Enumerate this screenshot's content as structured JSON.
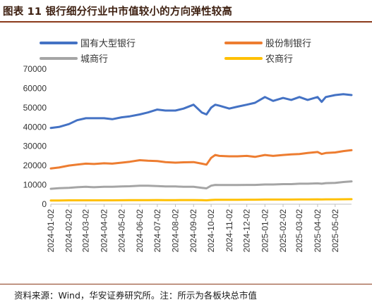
{
  "title": "图表 11 银行细分行业中市值较小的方向弹性较高",
  "source": "资料来源：Wind，华安证券研究所。注：所示为各板块总市值",
  "colors": {
    "guoyou": "#4472C4",
    "gufen": "#ED7D31",
    "chengshang": "#A5A5A5",
    "nongshang": "#FFC000",
    "accent": "#8b3a1a"
  },
  "chart_data": {
    "type": "line",
    "ylim": [
      0,
      70000
    ],
    "yticks": [
      0,
      10000,
      20000,
      30000,
      40000,
      50000,
      60000,
      70000
    ],
    "ytick_labels": [
      "0",
      "10000",
      "20000",
      "30000",
      "40000",
      "50000",
      "60000",
      "70000"
    ],
    "x_tick_labels": [
      "2024-01-02",
      "2024-02-02",
      "2024-03-02",
      "2024-04-02",
      "2024-05-02",
      "2024-06-02",
      "2024-07-02",
      "2024-08-02",
      "2024-09-02",
      "2024-10-02",
      "2024-11-02",
      "2024-12-02",
      "2025-01-02",
      "2025-02-02",
      "2025-03-02",
      "2025-04-02",
      "2025-05-02"
    ],
    "x": [
      "2024-01-02",
      "2024-01-16",
      "2024-02-02",
      "2024-02-16",
      "2024-03-02",
      "2024-03-16",
      "2024-04-02",
      "2024-04-16",
      "2024-05-02",
      "2024-05-16",
      "2024-06-02",
      "2024-06-16",
      "2024-07-02",
      "2024-07-16",
      "2024-08-02",
      "2024-08-16",
      "2024-09-02",
      "2024-09-16",
      "2024-09-24",
      "2024-10-02",
      "2024-10-09",
      "2024-10-16",
      "2024-11-02",
      "2024-11-16",
      "2024-12-02",
      "2024-12-16",
      "2025-01-02",
      "2025-01-16",
      "2025-02-02",
      "2025-02-16",
      "2025-03-02",
      "2025-03-16",
      "2025-04-02",
      "2025-04-09",
      "2025-04-16",
      "2025-05-02",
      "2025-05-16",
      "2025-05-30"
    ],
    "series": [
      {
        "name": "国有大型银行",
        "color_key": "guoyou",
        "values": [
          39500,
          40000,
          41500,
          43500,
          44500,
          44500,
          44500,
          44000,
          45000,
          45500,
          46500,
          47500,
          49000,
          48500,
          48500,
          49500,
          51500,
          47500,
          46500,
          50000,
          51500,
          51000,
          49500,
          50500,
          51500,
          52500,
          55500,
          53500,
          55000,
          54000,
          55500,
          54000,
          55500,
          53000,
          55500,
          56500,
          57000,
          56500
        ]
      },
      {
        "name": "股份制银行",
        "color_key": "gufen",
        "values": [
          18500,
          19000,
          20000,
          20500,
          21000,
          20800,
          21200,
          21000,
          21500,
          22000,
          22800,
          22500,
          22300,
          21800,
          21500,
          21700,
          21800,
          21000,
          20500,
          24000,
          25500,
          25000,
          24800,
          24800,
          25000,
          24500,
          25500,
          25000,
          25500,
          25800,
          26000,
          26500,
          27000,
          26000,
          26500,
          26800,
          27500,
          28000
        ]
      },
      {
        "name": "城商行",
        "color_key": "chengshang",
        "values": [
          8000,
          8300,
          8500,
          8800,
          9000,
          8800,
          9000,
          9000,
          9200,
          9300,
          9600,
          9600,
          9400,
          9200,
          9200,
          9000,
          9000,
          8500,
          8200,
          9600,
          10000,
          9900,
          9900,
          9900,
          10000,
          10000,
          10200,
          10200,
          10400,
          10400,
          10600,
          10600,
          10800,
          10600,
          10900,
          11000,
          11500,
          11800
        ]
      },
      {
        "name": "农商行",
        "color_key": "nongshang",
        "values": [
          1900,
          1900,
          2000,
          2000,
          2000,
          2000,
          2000,
          2000,
          2050,
          2100,
          2100,
          2100,
          2150,
          2100,
          2100,
          2150,
          2150,
          2100,
          2000,
          2200,
          2300,
          2300,
          2300,
          2300,
          2350,
          2350,
          2400,
          2400,
          2400,
          2400,
          2450,
          2450,
          2500,
          2450,
          2500,
          2500,
          2550,
          2600
        ]
      }
    ],
    "legend": [
      "国有大型银行",
      "股份制银行",
      "城商行",
      "农商行"
    ],
    "legend_placement": "top",
    "grid": false
  }
}
